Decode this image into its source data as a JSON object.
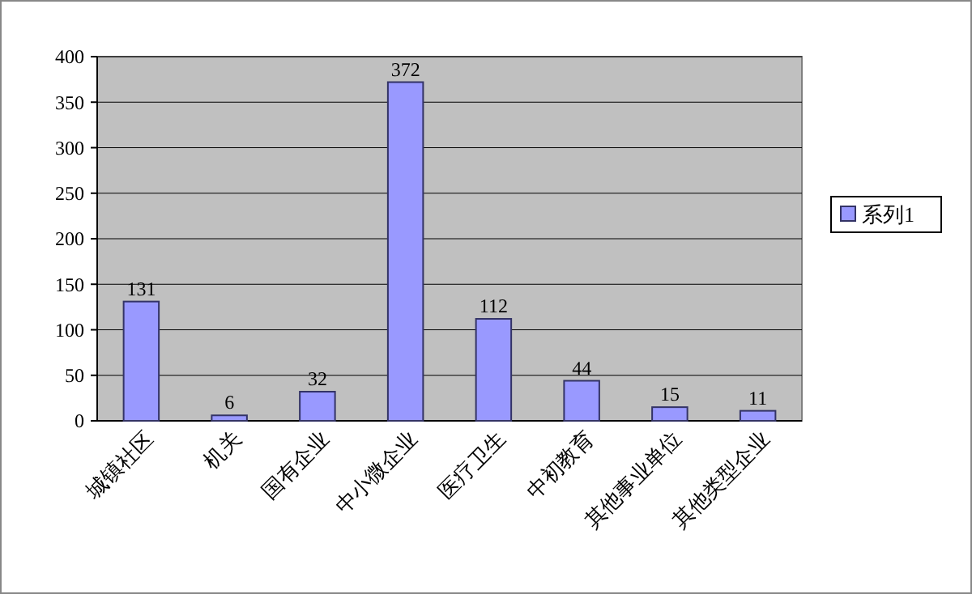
{
  "chart_data": {
    "type": "bar",
    "categories": [
      "城镇社区",
      "机关",
      "国有企业",
      "中小微企业",
      "医疗卫生",
      "中初教育",
      "其他事业单位",
      "其他类型企业"
    ],
    "series": [
      {
        "name": "系列1",
        "color": "#9999ff",
        "values": [
          131,
          6,
          32,
          372,
          112,
          44,
          15,
          11
        ]
      }
    ],
    "ylim": [
      0,
      400
    ],
    "yticks": [
      0,
      50,
      100,
      150,
      200,
      250,
      300,
      350,
      400
    ],
    "grid": "y",
    "legend": "right",
    "data_labels": true
  }
}
